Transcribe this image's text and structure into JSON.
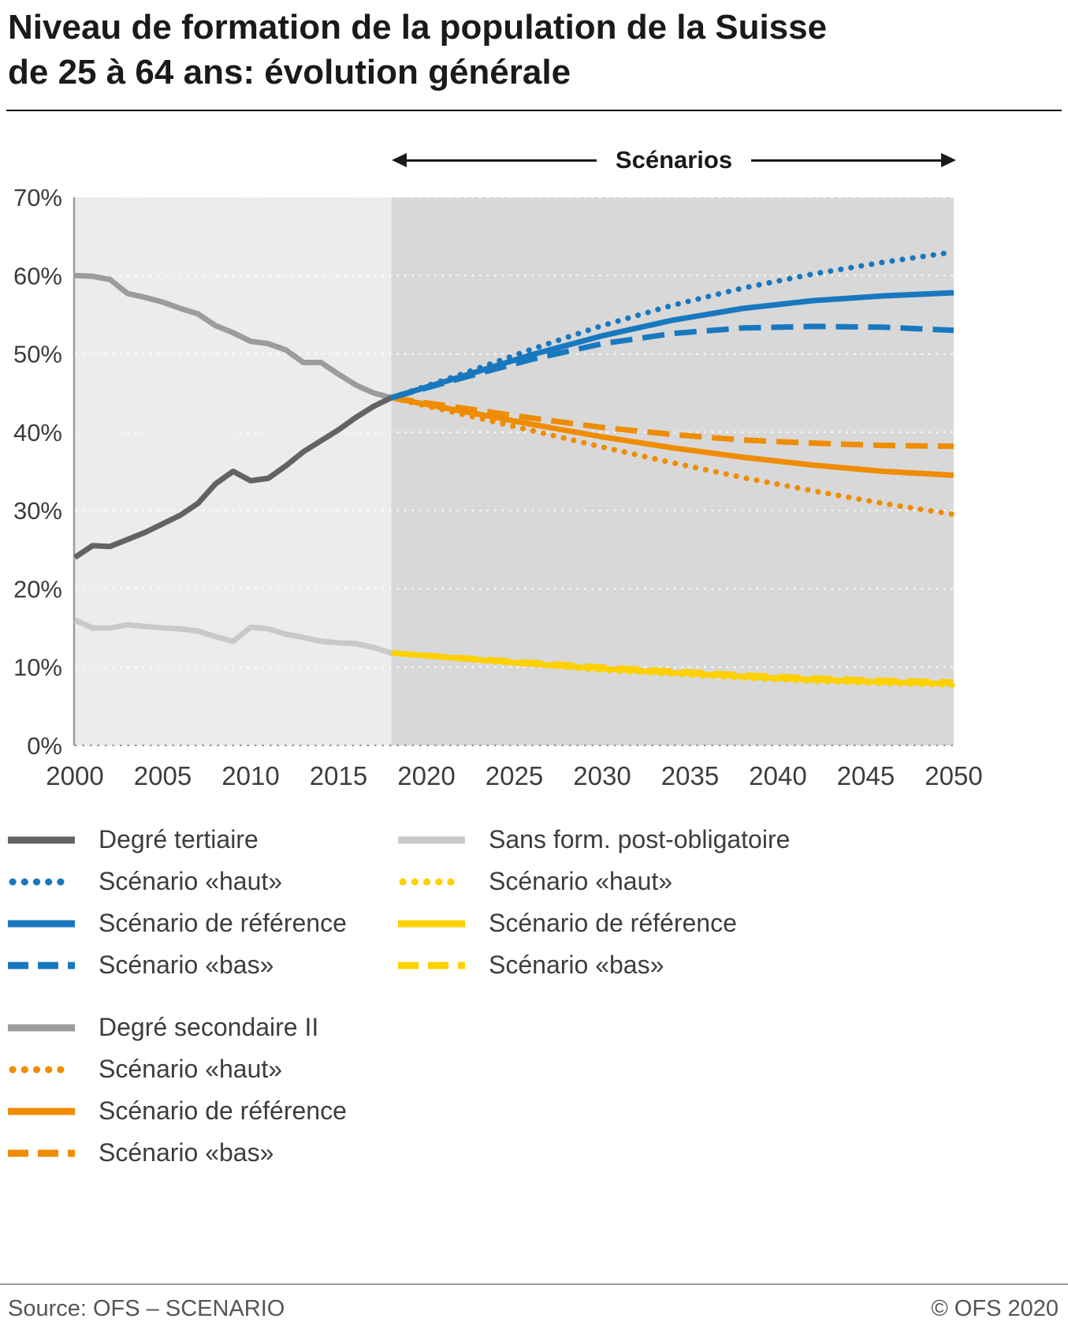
{
  "title": {
    "line1": "Niveau de formation de la population de la Suisse",
    "line2": "de 25 à 64 ans: évolution générale"
  },
  "scenario_header": {
    "label": "Scénarios"
  },
  "chart_data": {
    "type": "line",
    "title": "Niveau de formation de la population de la Suisse de 25 à 64 ans: évolution générale",
    "xlabel": "",
    "ylabel": "",
    "xlim": [
      2000,
      2050
    ],
    "ylim": [
      0,
      70
    ],
    "x_ticks": [
      "2000",
      "2005",
      "2010",
      "2015",
      "2020",
      "2025",
      "2030",
      "2035",
      "2040",
      "2045",
      "2050"
    ],
    "y_ticks": [
      "0%",
      "10%",
      "20%",
      "30%",
      "40%",
      "50%",
      "60%",
      "70%"
    ],
    "grid": true,
    "legend_position": "below",
    "scenario_start": 2018,
    "background": {
      "historical": "#ececec",
      "scenario": "#d8d8d8"
    },
    "series": [
      {
        "id": "sans-form-scenario-haut",
        "name": "Sans form. post-obligatoire — Scénario «haut»",
        "color": "#fdd000",
        "dash": "dotted",
        "width": 7,
        "x": [
          2018,
          2022,
          2026,
          2030,
          2034,
          2038,
          2042,
          2046,
          2050
        ],
        "y": [
          11.8,
          11.0,
          10.3,
          9.6,
          9.1,
          8.6,
          8.2,
          7.9,
          7.7
        ]
      },
      {
        "id": "sans-form-scenario-bas",
        "name": "Sans form. post-obligatoire — Scénario «bas»",
        "color": "#fdd000",
        "dash": "dashed",
        "width": 7,
        "x": [
          2018,
          2022,
          2026,
          2030,
          2034,
          2038,
          2042,
          2046,
          2050
        ],
        "y": [
          11.8,
          11.2,
          10.6,
          10.0,
          9.5,
          9.0,
          8.6,
          8.3,
          8.1
        ]
      },
      {
        "id": "sans-form-scenario-reference",
        "name": "Sans form. post-obligatoire — Scénario de référence",
        "color": "#fdd000",
        "dash": "solid",
        "width": 7,
        "x": [
          2018,
          2022,
          2026,
          2030,
          2034,
          2038,
          2042,
          2046,
          2050
        ],
        "y": [
          11.8,
          11.1,
          10.4,
          9.8,
          9.3,
          8.8,
          8.4,
          8.1,
          7.9
        ]
      },
      {
        "id": "sans-form-historique",
        "name": "Sans form. post-obligatoire",
        "color": "#c9c9c9",
        "dash": "solid",
        "width": 7,
        "x": [
          2000,
          2001,
          2002,
          2003,
          2004,
          2005,
          2006,
          2007,
          2008,
          2009,
          2010,
          2011,
          2012,
          2013,
          2014,
          2015,
          2016,
          2017,
          2018
        ],
        "y": [
          16.0,
          15.0,
          15.0,
          15.4,
          15.2,
          15.0,
          14.9,
          14.6,
          13.9,
          13.3,
          15.1,
          14.9,
          14.2,
          13.8,
          13.3,
          13.1,
          13.0,
          12.5,
          11.8
        ]
      },
      {
        "id": "secondaire-scenario-haut",
        "name": "Degré secondaire II — Scénario «haut»",
        "color": "#f08c00",
        "dash": "dotted",
        "width": 7,
        "x": [
          2018,
          2022,
          2026,
          2030,
          2034,
          2038,
          2042,
          2046,
          2050
        ],
        "y": [
          44.4,
          42.3,
          40.2,
          38.1,
          36.1,
          34.2,
          32.5,
          30.9,
          29.5
        ]
      },
      {
        "id": "secondaire-scenario-bas",
        "name": "Degré secondaire II — Scénario «bas»",
        "color": "#f08c00",
        "dash": "dashed",
        "width": 7,
        "x": [
          2018,
          2022,
          2026,
          2030,
          2034,
          2038,
          2042,
          2046,
          2050
        ],
        "y": [
          44.4,
          43.1,
          41.8,
          40.6,
          39.7,
          39.0,
          38.6,
          38.3,
          38.2
        ]
      },
      {
        "id": "secondaire-scenario-reference",
        "name": "Degré secondaire II — Scénario de référence",
        "color": "#f08c00",
        "dash": "solid",
        "width": 7,
        "x": [
          2018,
          2022,
          2026,
          2030,
          2034,
          2038,
          2042,
          2046,
          2050
        ],
        "y": [
          44.4,
          42.7,
          41.0,
          39.4,
          38.0,
          36.8,
          35.8,
          35.0,
          34.5
        ]
      },
      {
        "id": "secondaire-historique",
        "name": "Degré secondaire II",
        "color": "#9c9c9c",
        "dash": "solid",
        "width": 7,
        "x": [
          2000,
          2001,
          2002,
          2003,
          2004,
          2005,
          2006,
          2007,
          2008,
          2009,
          2010,
          2011,
          2012,
          2013,
          2014,
          2015,
          2016,
          2017,
          2018
        ],
        "y": [
          60.0,
          59.9,
          59.5,
          57.7,
          57.2,
          56.6,
          55.8,
          55.1,
          53.6,
          52.7,
          51.6,
          51.3,
          50.5,
          48.9,
          48.9,
          47.4,
          46.0,
          45.0,
          44.4
        ]
      },
      {
        "id": "tertiaire-scenario-haut",
        "name": "Degré tertiaire — Scénario «haut»",
        "color": "#1878bf",
        "dash": "dotted",
        "width": 7,
        "x": [
          2018,
          2022,
          2026,
          2030,
          2034,
          2038,
          2042,
          2046,
          2050
        ],
        "y": [
          44.4,
          47.4,
          50.6,
          53.6,
          56.2,
          58.4,
          60.2,
          61.7,
          63.0
        ]
      },
      {
        "id": "tertiaire-scenario-bas",
        "name": "Degré tertiaire — Scénario «bas»",
        "color": "#1878bf",
        "dash": "dashed",
        "width": 7,
        "x": [
          2018,
          2022,
          2026,
          2030,
          2034,
          2038,
          2042,
          2046,
          2050
        ],
        "y": [
          44.4,
          46.9,
          49.3,
          51.3,
          52.6,
          53.3,
          53.5,
          53.4,
          53.0
        ]
      },
      {
        "id": "tertiaire-scenario-reference",
        "name": "Degré tertiaire — Scénario de référence",
        "color": "#1878bf",
        "dash": "solid",
        "width": 7,
        "x": [
          2018,
          2022,
          2026,
          2030,
          2034,
          2038,
          2042,
          2046,
          2050
        ],
        "y": [
          44.4,
          47.1,
          49.9,
          52.3,
          54.3,
          55.8,
          56.8,
          57.4,
          57.8
        ]
      },
      {
        "id": "tertiaire-historique",
        "name": "Degré tertiaire",
        "color": "#636363",
        "dash": "solid",
        "width": 7,
        "x": [
          2000,
          2001,
          2002,
          2003,
          2004,
          2005,
          2006,
          2007,
          2008,
          2009,
          2010,
          2011,
          2012,
          2013,
          2014,
          2015,
          2016,
          2017,
          2018
        ],
        "y": [
          24.0,
          25.5,
          25.4,
          26.3,
          27.2,
          28.3,
          29.4,
          30.9,
          33.4,
          35.0,
          33.8,
          34.1,
          35.7,
          37.5,
          38.9,
          40.3,
          41.9,
          43.3,
          44.4
        ]
      }
    ]
  },
  "legend": {
    "left": [
      {
        "label": "Degré tertiaire",
        "color": "#636363",
        "dash": "solid"
      },
      {
        "label": "Scénario «haut»",
        "color": "#1878bf",
        "dash": "dotted"
      },
      {
        "label": "Scénario de référence",
        "color": "#1878bf",
        "dash": "solid"
      },
      {
        "label": "Scénario «bas»",
        "color": "#1878bf",
        "dash": "dashed"
      },
      {
        "label": "Degré secondaire II",
        "color": "#9c9c9c",
        "dash": "solid",
        "gap_before": true
      },
      {
        "label": "Scénario «haut»",
        "color": "#f08c00",
        "dash": "dotted"
      },
      {
        "label": "Scénario de référence",
        "color": "#f08c00",
        "dash": "solid"
      },
      {
        "label": "Scénario «bas»",
        "color": "#f08c00",
        "dash": "dashed"
      }
    ],
    "right": [
      {
        "label": "Sans form. post-obligatoire",
        "color": "#c9c9c9",
        "dash": "solid"
      },
      {
        "label": "Scénario «haut»",
        "color": "#fdd000",
        "dash": "dotted"
      },
      {
        "label": "Scénario de référence",
        "color": "#fdd000",
        "dash": "solid"
      },
      {
        "label": "Scénario «bas»",
        "color": "#fdd000",
        "dash": "dashed"
      }
    ]
  },
  "footer": {
    "source": "Source: OFS – SCENARIO",
    "copyright": "© OFS 2020"
  }
}
